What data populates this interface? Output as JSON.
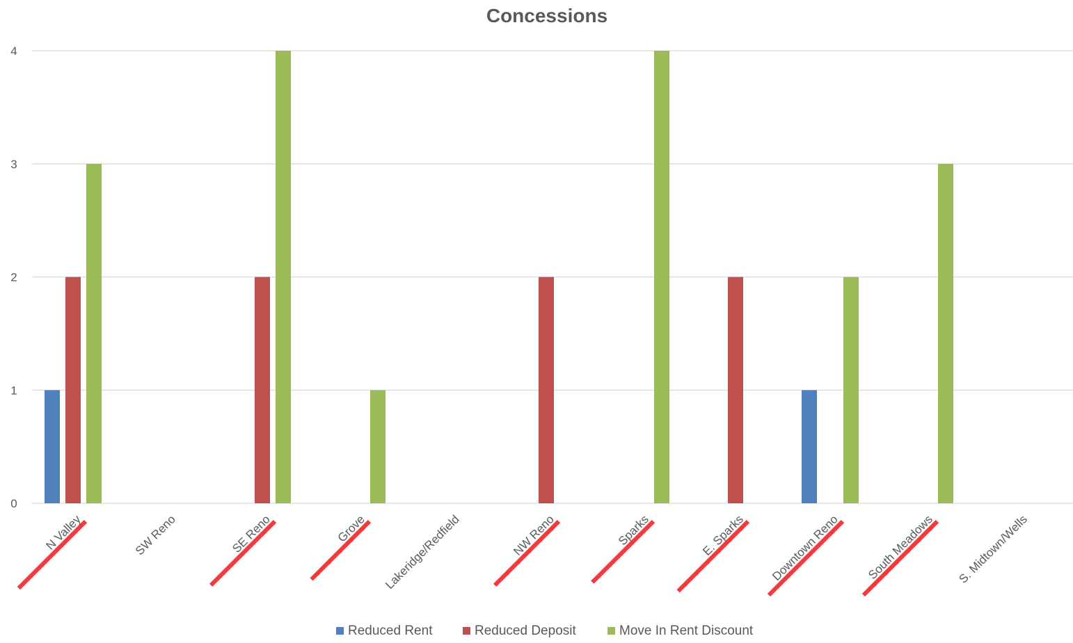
{
  "chart_data": {
    "type": "bar",
    "title": "Concessions",
    "xlabel": "",
    "ylabel": "",
    "ylim": [
      0,
      4
    ],
    "yticks": [
      0,
      1,
      2,
      3,
      4
    ],
    "grid": true,
    "legend_position": "bottom",
    "categories": [
      "N Valley",
      "SW Reno",
      "SE Reno",
      "Grove",
      "Lakeridge/Redfield",
      "NW Reno",
      "Sparks",
      "E. Sparks",
      "Downtown Reno",
      "South Meadows",
      "S. Midtown/Wells"
    ],
    "series": [
      {
        "name": "Reduced Rent",
        "color": "#4f81bd",
        "values": [
          1,
          0,
          0,
          0,
          0,
          0,
          0,
          0,
          1,
          0,
          0
        ]
      },
      {
        "name": "Reduced Deposit",
        "color": "#c0504d",
        "values": [
          2,
          0,
          2,
          0,
          0,
          2,
          0,
          2,
          0,
          0,
          0
        ]
      },
      {
        "name": "Move In Rent Discount",
        "color": "#9bbb59",
        "values": [
          3,
          0,
          4,
          1,
          0,
          0,
          4,
          0,
          2,
          3,
          0
        ]
      }
    ],
    "annotations": {
      "strikethrough_color": "#ee3b3b",
      "struck_categories": [
        "N Valley",
        "SE Reno",
        "Grove",
        "NW Reno",
        "Sparks",
        "E. Sparks",
        "Downtown Reno",
        "South Meadows"
      ]
    }
  }
}
